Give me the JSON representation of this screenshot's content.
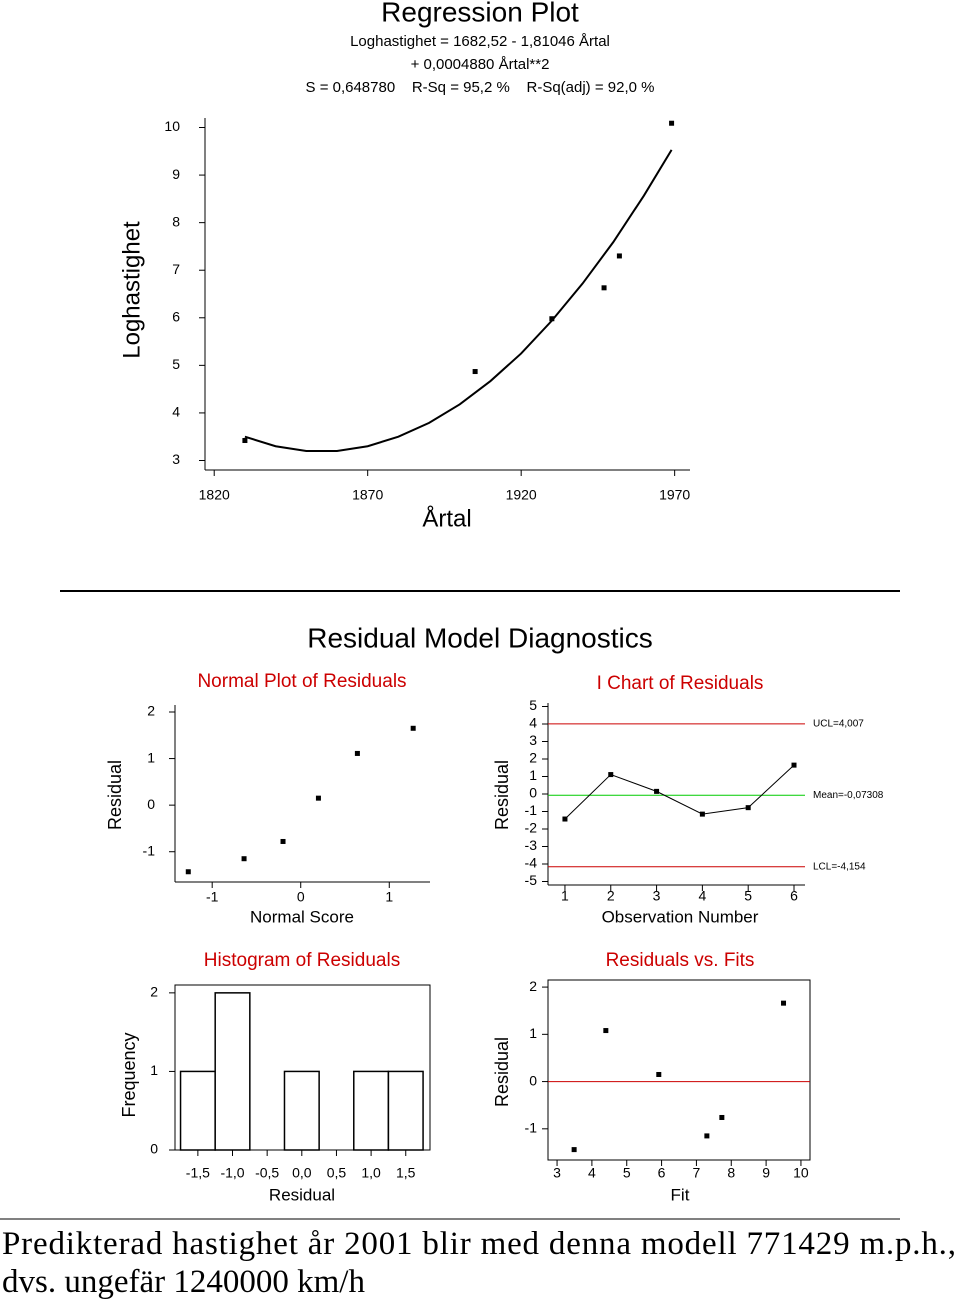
{
  "chart_data": [
    {
      "type": "scatter",
      "title": "Regression Plot",
      "subtitle": [
        "Loghastighet = 1682,52 - 1,81046 Årtal",
        "+ 0,0004880 Årtal**2",
        "S = 0,648780    R-Sq = 95,2 %    R-Sq(adj) = 92,0 %"
      ],
      "x_label": "Årtal",
      "y_label": "Loghastighet",
      "xlim": [
        1817,
        1975
      ],
      "ylim": [
        2.8,
        10.2
      ],
      "xticks": [
        1820,
        1870,
        1920,
        1970
      ],
      "yticks": [
        3,
        4,
        5,
        6,
        7,
        8,
        9,
        10
      ],
      "series": [
        {
          "mode": "markers",
          "color": "#000000",
          "x": [
            1830,
            1905,
            1930,
            1947,
            1952,
            1969
          ],
          "values": [
            3.42,
            4.87,
            5.98,
            6.63,
            7.3,
            10.09
          ]
        },
        {
          "mode": "line",
          "color": "#000000",
          "x": [
            1830,
            1840,
            1850,
            1860,
            1870,
            1880,
            1890,
            1900,
            1910,
            1920,
            1930,
            1940,
            1950,
            1960,
            1969
          ],
          "values": [
            3.5,
            3.3,
            3.2,
            3.2,
            3.3,
            3.5,
            3.79,
            4.18,
            4.67,
            5.25,
            5.94,
            6.72,
            7.59,
            8.57,
            9.53
          ]
        }
      ]
    },
    {
      "type": "scatter",
      "title": "Normal Plot of Residuals",
      "title_color": "#cc0000",
      "x_label": "Normal Score",
      "y_label": "Residual",
      "xlim": [
        -1.42,
        1.46
      ],
      "ylim": [
        -1.65,
        2.15
      ],
      "xticks": [
        -1,
        0,
        1
      ],
      "yticks": [
        -1,
        0,
        1,
        2
      ],
      "series": [
        {
          "mode": "markers",
          "color": "#000000",
          "x": [
            -1.27,
            -0.64,
            -0.2,
            0.2,
            0.64,
            1.27
          ],
          "values": [
            -1.43,
            -1.15,
            -0.78,
            0.15,
            1.11,
            1.65
          ]
        }
      ]
    },
    {
      "type": "line",
      "title": "I Chart of Residuals",
      "title_color": "#cc0000",
      "x_label": "Observation Number",
      "y_label": "Residual",
      "xlim": [
        0.63,
        6.24
      ],
      "ylim": [
        -5.2,
        5.2
      ],
      "xticks": [
        1,
        2,
        3,
        4,
        5,
        6
      ],
      "yticks": [
        5,
        4,
        3,
        2,
        1,
        0,
        -1,
        -2,
        -3,
        -4,
        -5
      ],
      "x": [
        1,
        2,
        3,
        4,
        5,
        6
      ],
      "values": [
        -1.43,
        1.11,
        0.15,
        -1.15,
        -0.78,
        1.65
      ],
      "color": "#000000",
      "control_lines": [
        {
          "value": 4.007,
          "label": "UCL=4,007",
          "color": "#cc0000"
        },
        {
          "value": -0.07308,
          "label": "Mean=-0,07308",
          "color": "#00cc00"
        },
        {
          "value": -4.154,
          "label": "LCL=-4,154",
          "color": "#cc0000"
        }
      ]
    },
    {
      "type": "histogram",
      "title": "Histogram of Residuals",
      "title_color": "#cc0000",
      "frame": true,
      "x_label": "Residual",
      "y_label": "Frequency",
      "xlim": [
        -1.83,
        1.85
      ],
      "ylim": [
        0,
        2.1
      ],
      "xticks": [
        {
          "value": -1.5,
          "label": "-1,5"
        },
        {
          "value": -1,
          "label": "-1,0"
        },
        {
          "value": -0.5,
          "label": "-0,5"
        },
        {
          "value": 0,
          "label": "0,0"
        },
        {
          "value": 0.5,
          "label": "0,5"
        },
        {
          "value": 1,
          "label": "1,0"
        },
        {
          "value": 1.5,
          "label": "1,5"
        }
      ],
      "yticks": [
        0,
        1,
        2
      ],
      "bins": [
        -1.75,
        -1.25,
        -0.75,
        -0.25,
        0.25,
        0.75,
        1.25,
        1.75
      ],
      "values": [
        1,
        2,
        0,
        1,
        0,
        1,
        1
      ],
      "color": "#ffffff"
    },
    {
      "type": "scatter",
      "title": "Residuals vs. Fits",
      "title_color": "#cc0000",
      "frame": true,
      "x_label": "Fit",
      "y_label": "Residual",
      "xlim": [
        2.74,
        10.26
      ],
      "ylim": [
        -1.66,
        2.15
      ],
      "xticks": [
        3,
        4,
        5,
        6,
        7,
        8,
        9,
        10
      ],
      "yticks": [
        -1,
        0,
        1,
        2
      ],
      "hline": 0,
      "hline_color": "#cc0000",
      "series": [
        {
          "mode": "markers",
          "color": "#000000",
          "x": [
            3.49,
            4.4,
            5.92,
            7.3,
            7.73,
            9.5
          ],
          "values": [
            -1.44,
            1.08,
            0.15,
            -1.15,
            -0.76,
            1.66
          ]
        }
      ]
    }
  ],
  "heading": "Residual Model Diagnostics",
  "footer": [
    "Predikterad hastighet år 2001 blir med denna modell 771429 m.p.h.,",
    "dvs. ungefär 1240000 km/h"
  ]
}
